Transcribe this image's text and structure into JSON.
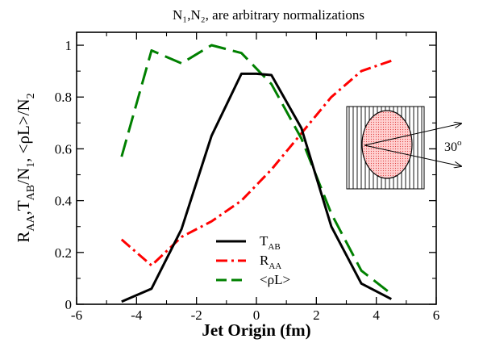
{
  "chart_data": {
    "type": "line",
    "title": "N₁,N₂, are arbitrary normalizations",
    "xlabel": "Jet Origin (fm)",
    "ylabel": "R_AA, T_AB/N₁, <ρL>/N₂",
    "xlim": [
      -6,
      6
    ],
    "ylim": [
      0,
      1.05
    ],
    "xticks": [
      "-6",
      "-4",
      "-2",
      "0",
      "2",
      "4",
      "6"
    ],
    "yticks": [
      "0",
      "0.2",
      "0.4",
      "0.6",
      "0.8",
      "1"
    ],
    "grid": false,
    "legend_position": "bottom-center",
    "legend": [
      {
        "main": "T",
        "sub": "AB"
      },
      {
        "main": "R",
        "sub": "AA"
      },
      {
        "main": "<ρL>",
        "sub": ""
      }
    ],
    "series": [
      {
        "name": "T_AB",
        "color": "#000000",
        "style": "solid",
        "x": [
          -4.5,
          -3.5,
          -2.5,
          -1.5,
          -0.5,
          0,
          0.5,
          1.5,
          2.5,
          3.5,
          4.5
        ],
        "y": [
          0.01,
          0.06,
          0.29,
          0.65,
          0.89,
          0.89,
          0.885,
          0.68,
          0.3,
          0.08,
          0.02
        ]
      },
      {
        "name": "R_AA",
        "color": "#ff0000",
        "style": "dashdot",
        "x": [
          -4.5,
          -3.5,
          -2.5,
          -1.5,
          -0.5,
          0.5,
          1.5,
          2.5,
          3.5,
          4.5
        ],
        "y": [
          0.25,
          0.15,
          0.26,
          0.32,
          0.4,
          0.52,
          0.66,
          0.8,
          0.9,
          0.94
        ]
      },
      {
        "name": "<ρL>",
        "color": "#008000",
        "style": "dashed",
        "x": [
          -4.5,
          -3.5,
          -2.5,
          -1.5,
          -0.5,
          0.5,
          1.5,
          2.5,
          3.5,
          4.5
        ],
        "y": [
          0.57,
          0.98,
          0.93,
          1.0,
          0.97,
          0.85,
          0.64,
          0.35,
          0.13,
          0.04
        ]
      }
    ],
    "inset": {
      "angle_label": "30",
      "angle_unit": "o"
    }
  }
}
